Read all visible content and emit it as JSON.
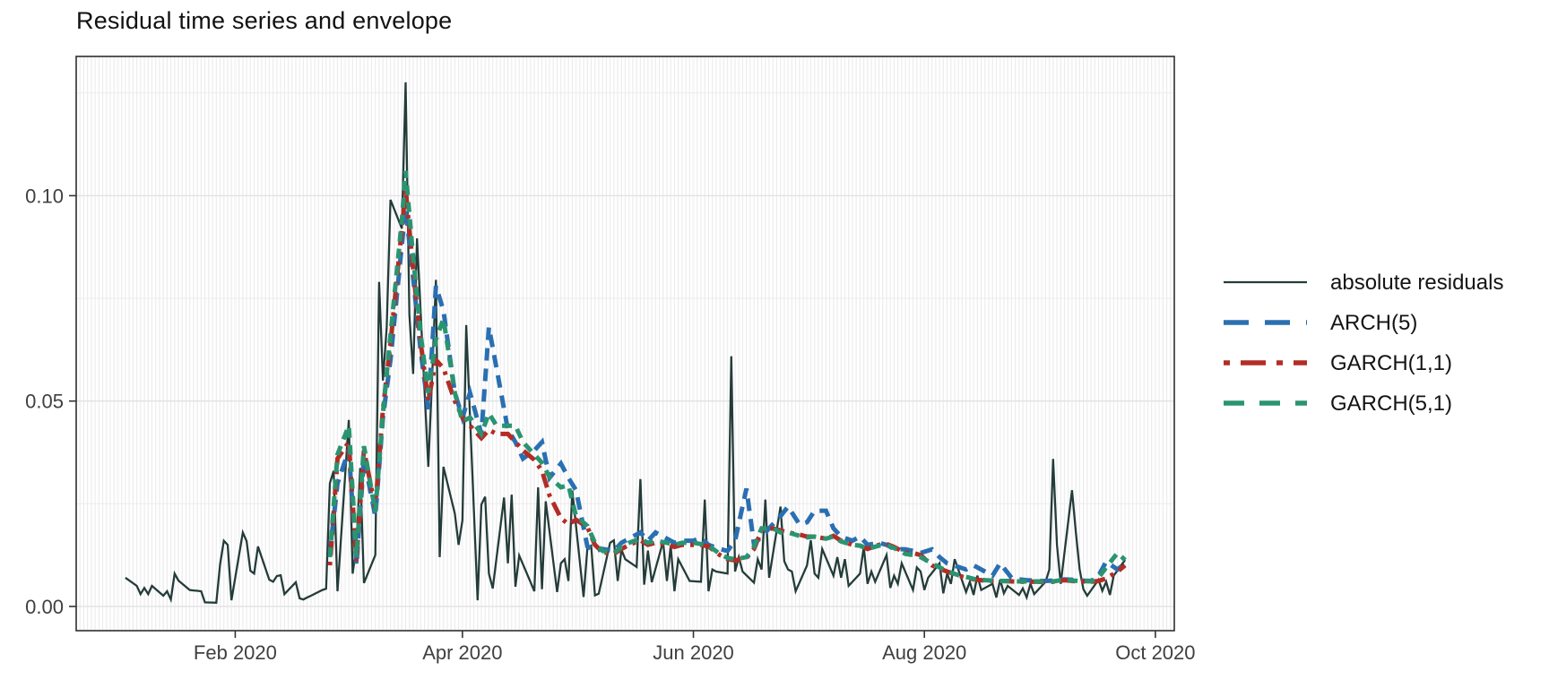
{
  "page": {
    "background": "#ffffff"
  },
  "chart_data": {
    "type": "line",
    "title": "Residual time series and envelope",
    "legend_position": "right",
    "x_axis": {
      "unit": "day of year 2020",
      "tick_labels": [
        "Feb 2020",
        "Apr 2020",
        "Jun 2020",
        "Aug 2020",
        "Oct 2020"
      ],
      "tick_days": [
        32,
        92,
        153,
        214,
        275
      ],
      "month_start_days": [
        1,
        32,
        61,
        92,
        122,
        153,
        183,
        214,
        245,
        275
      ],
      "domain_days": [
        -10,
        280
      ]
    },
    "y_axis": {
      "tick_labels": [
        "0.00",
        "0.05",
        "0.10"
      ],
      "tick_values": [
        0.0,
        0.05,
        0.1
      ],
      "minor_values": [
        0.025,
        0.075,
        0.125
      ],
      "domain": [
        -0.0059,
        0.1339
      ]
    },
    "grid": {
      "panel_background": "#ffffff",
      "panel_border": "#2f2f2f",
      "major_h": "#e2e2e2",
      "minor_h": "#ececec",
      "day_stripe": "#ececec",
      "month_band": "#f7f7f7"
    },
    "series": [
      {
        "name": "absolute residuals",
        "color": "#243c39",
        "linetype": "solid",
        "width": 2.3,
        "x": [
          3,
          6,
          7,
          8,
          9,
          10,
          13,
          14,
          15,
          16,
          17,
          20,
          21,
          22,
          23,
          24,
          27,
          28,
          29,
          30,
          31,
          34,
          35,
          36,
          37,
          38,
          41,
          42,
          43,
          44,
          45,
          48,
          49,
          50,
          51,
          52,
          55,
          56,
          57,
          58,
          59,
          62,
          63,
          64,
          65,
          66,
          69,
          70,
          71,
          72,
          73,
          76,
          77,
          78,
          79,
          80,
          83,
          84,
          85,
          86,
          87,
          90,
          91,
          92,
          93,
          96,
          97,
          98,
          99,
          100,
          103,
          104,
          105,
          106,
          107,
          110,
          111,
          112,
          113,
          114,
          117,
          118,
          119,
          120,
          121,
          124,
          125,
          126,
          127,
          128,
          131,
          132,
          133,
          134,
          135,
          138,
          139,
          140,
          141,
          142,
          145,
          146,
          147,
          148,
          149,
          152,
          155,
          156,
          157,
          158,
          159,
          162,
          163,
          164,
          165,
          166,
          169,
          170,
          171,
          172,
          173,
          176,
          177,
          178,
          179,
          180,
          183,
          184,
          185,
          186,
          187,
          190,
          191,
          192,
          193,
          194,
          197,
          198,
          199,
          200,
          201,
          204,
          205,
          206,
          207,
          208,
          211,
          212,
          213,
          214,
          215,
          218,
          219,
          220,
          221,
          222,
          225,
          226,
          227,
          228,
          229,
          232,
          233,
          234,
          235,
          236,
          239,
          240,
          241,
          242,
          243,
          246,
          247,
          248,
          249,
          250,
          253,
          254,
          255,
          256,
          257,
          260,
          261,
          262,
          263,
          264,
          267
        ],
        "y": [
          0.007,
          0.005,
          0.003,
          0.0045,
          0.003,
          0.005,
          0.0026,
          0.0037,
          0.0017,
          0.008,
          0.0063,
          0.004,
          0.0039,
          0.0038,
          0.0037,
          0.001,
          0.0009,
          0.0102,
          0.016,
          0.015,
          0.0015,
          0.018,
          0.0159,
          0.0087,
          0.008,
          0.0146,
          0.0065,
          0.006,
          0.0074,
          0.0076,
          0.003,
          0.0059,
          0.002,
          0.0017,
          0.0022,
          0.0026,
          0.004,
          0.0043,
          0.03,
          0.033,
          0.0037,
          0.0454,
          0.008,
          0.0147,
          0.0337,
          0.0057,
          0.0125,
          0.079,
          0.055,
          0.068,
          0.099,
          0.092,
          0.1276,
          0.071,
          0.0566,
          0.0896,
          0.034,
          0.056,
          0.0795,
          0.012,
          0.034,
          0.0226,
          0.015,
          0.021,
          0.0685,
          0.0015,
          0.0248,
          0.0267,
          0.008,
          0.0044,
          0.0265,
          0.0105,
          0.0272,
          0.0048,
          0.0124,
          0.0059,
          0.0037,
          0.029,
          0.0042,
          0.0256,
          0.0035,
          0.0105,
          0.0115,
          0.0062,
          0.0282,
          0.0023,
          0.0143,
          0.0148,
          0.0027,
          0.0031,
          0.0155,
          0.0161,
          0.0062,
          0.0138,
          0.0115,
          0.0096,
          0.031,
          0.0053,
          0.0136,
          0.0059,
          0.0158,
          0.0062,
          0.0148,
          0.0037,
          0.0115,
          0.0062,
          0.006,
          0.026,
          0.0037,
          0.009,
          0.0085,
          0.008,
          0.0609,
          0.0085,
          0.012,
          0.0085,
          0.0058,
          0.0115,
          0.009,
          0.026,
          0.007,
          0.0243,
          0.011,
          0.009,
          0.0085,
          0.0037,
          0.01,
          0.0161,
          0.008,
          0.007,
          0.014,
          0.0075,
          0.012,
          0.007,
          0.0115,
          0.005,
          0.008,
          0.0145,
          0.0055,
          0.0085,
          0.006,
          0.0125,
          0.0045,
          0.0075,
          0.0055,
          0.0105,
          0.004,
          0.0095,
          0.0085,
          0.004,
          0.007,
          0.0105,
          0.0032,
          0.008,
          0.0055,
          0.0115,
          0.0035,
          0.006,
          0.0028,
          0.0075,
          0.004,
          0.0055,
          0.0022,
          0.0065,
          0.0032,
          0.005,
          0.0028,
          0.0044,
          0.0022,
          0.0055,
          0.003,
          0.006,
          0.009,
          0.0359,
          0.015,
          0.0055,
          0.0283,
          0.018,
          0.009,
          0.0042,
          0.0026,
          0.0065,
          0.0038,
          0.006,
          0.0028,
          0.0075,
          0.0113
        ]
      },
      {
        "name": "ARCH(5)",
        "color": "#2a6fb1",
        "linetype": "longdash",
        "width": 5,
        "x": [
          57,
          59,
          62,
          64,
          66,
          69,
          71,
          73,
          76,
          77,
          79,
          81,
          83,
          85,
          87,
          90,
          92,
          94,
          97,
          99,
          101,
          104,
          106,
          108,
          111,
          113,
          115,
          118,
          120,
          122,
          125,
          127,
          129,
          132,
          134,
          136,
          139,
          141,
          143,
          146,
          148,
          150,
          153,
          155,
          157,
          160,
          162,
          164,
          167,
          169,
          171,
          174,
          176,
          178,
          181,
          183,
          185,
          188,
          190,
          192,
          195,
          197,
          199,
          202,
          204,
          206,
          209,
          211,
          213,
          216,
          218,
          220,
          223,
          225,
          227,
          230,
          232,
          234,
          237,
          239,
          241,
          244,
          246,
          248,
          251,
          253,
          255,
          258,
          260,
          262,
          265,
          267
        ],
        "y": [
          0.013,
          0.03,
          0.038,
          0.01,
          0.036,
          0.022,
          0.046,
          0.06,
          0.088,
          0.097,
          0.08,
          0.062,
          0.048,
          0.078,
          0.072,
          0.052,
          0.046,
          0.052,
          0.042,
          0.068,
          0.058,
          0.043,
          0.04,
          0.036,
          0.038,
          0.04,
          0.0313,
          0.0348,
          0.0313,
          0.0283,
          0.0146,
          0.0135,
          0.014,
          0.0135,
          0.0155,
          0.0165,
          0.018,
          0.016,
          0.018,
          0.0165,
          0.0155,
          0.016,
          0.016,
          0.0167,
          0.015,
          0.014,
          0.0135,
          0.016,
          0.0287,
          0.0152,
          0.017,
          0.02,
          0.022,
          0.0243,
          0.02,
          0.0205,
          0.0233,
          0.0233,
          0.019,
          0.017,
          0.016,
          0.017,
          0.015,
          0.0155,
          0.015,
          0.014,
          0.0139,
          0.0135,
          0.013,
          0.0139,
          0.012,
          0.0105,
          0.0096,
          0.009,
          0.01,
          0.0085,
          0.0075,
          0.0105,
          0.007,
          0.0066,
          0.0064,
          0.0062,
          0.0062,
          0.0063,
          0.0066,
          0.0065,
          0.0063,
          0.0062,
          0.0075,
          0.0109,
          0.009,
          0.0105
        ]
      },
      {
        "name": "GARCH(1,1)",
        "color": "#b22d26",
        "linetype": "dotdash",
        "width": 5,
        "x": [
          57,
          59,
          62,
          64,
          66,
          69,
          71,
          73,
          76,
          77,
          79,
          81,
          83,
          85,
          87,
          90,
          92,
          94,
          97,
          99,
          101,
          104,
          106,
          108,
          111,
          113,
          115,
          118,
          120,
          122,
          125,
          127,
          129,
          132,
          134,
          136,
          139,
          141,
          143,
          146,
          148,
          150,
          153,
          155,
          157,
          160,
          162,
          164,
          167,
          169,
          171,
          174,
          176,
          178,
          181,
          183,
          185,
          188,
          190,
          192,
          195,
          197,
          199,
          202,
          204,
          206,
          209,
          211,
          213,
          216,
          218,
          220,
          223,
          225,
          227,
          230,
          232,
          234,
          237,
          239,
          241,
          244,
          246,
          248,
          251,
          253,
          255,
          258,
          260,
          262,
          265,
          267
        ],
        "y": [
          0.01,
          0.036,
          0.04,
          0.011,
          0.038,
          0.024,
          0.048,
          0.064,
          0.092,
          0.1015,
          0.082,
          0.064,
          0.05,
          0.06,
          0.058,
          0.05,
          0.046,
          0.044,
          0.041,
          0.043,
          0.042,
          0.042,
          0.04,
          0.038,
          0.0357,
          0.033,
          0.027,
          0.0215,
          0.02,
          0.0211,
          0.0193,
          0.015,
          0.0132,
          0.0128,
          0.014,
          0.015,
          0.0161,
          0.015,
          0.0155,
          0.015,
          0.0145,
          0.015,
          0.015,
          0.015,
          0.0146,
          0.0125,
          0.0115,
          0.0112,
          0.0118,
          0.014,
          0.0185,
          0.019,
          0.0185,
          0.018,
          0.0175,
          0.017,
          0.017,
          0.0165,
          0.0172,
          0.016,
          0.015,
          0.0148,
          0.014,
          0.015,
          0.0152,
          0.0145,
          0.013,
          0.013,
          0.0125,
          0.01,
          0.0092,
          0.0085,
          0.0075,
          0.007,
          0.0066,
          0.0063,
          0.0062,
          0.0062,
          0.0061,
          0.006,
          0.006,
          0.006,
          0.0059,
          0.006,
          0.0064,
          0.0062,
          0.0061,
          0.006,
          0.0062,
          0.0068,
          0.0085,
          0.01
        ]
      },
      {
        "name": "GARCH(5,1)",
        "color": "#2a9471",
        "linetype": "dash",
        "width": 5,
        "x": [
          57,
          59,
          62,
          64,
          66,
          69,
          71,
          73,
          76,
          77,
          79,
          81,
          83,
          85,
          87,
          90,
          92,
          94,
          97,
          99,
          101,
          104,
          106,
          108,
          111,
          113,
          115,
          118,
          120,
          122,
          125,
          127,
          129,
          132,
          134,
          136,
          139,
          141,
          143,
          146,
          148,
          150,
          153,
          155,
          157,
          160,
          162,
          164,
          167,
          169,
          171,
          174,
          176,
          178,
          181,
          183,
          185,
          188,
          190,
          192,
          195,
          197,
          199,
          202,
          204,
          206,
          209,
          211,
          213,
          216,
          218,
          220,
          223,
          225,
          227,
          230,
          232,
          234,
          237,
          239,
          241,
          244,
          246,
          248,
          251,
          253,
          255,
          258,
          260,
          262,
          265,
          267
        ],
        "y": [
          0.012,
          0.037,
          0.044,
          0.012,
          0.039,
          0.023,
          0.047,
          0.066,
          0.094,
          0.106,
          0.085,
          0.066,
          0.052,
          0.065,
          0.07,
          0.052,
          0.045,
          0.046,
          0.042,
          0.047,
          0.044,
          0.044,
          0.044,
          0.04,
          0.037,
          0.035,
          0.0315,
          0.029,
          0.0295,
          0.022,
          0.0196,
          0.0155,
          0.0135,
          0.013,
          0.0145,
          0.0155,
          0.0165,
          0.0155,
          0.016,
          0.0155,
          0.015,
          0.0155,
          0.0155,
          0.0152,
          0.0148,
          0.0128,
          0.0118,
          0.0115,
          0.012,
          0.0145,
          0.019,
          0.019,
          0.018,
          0.018,
          0.0172,
          0.0168,
          0.017,
          0.0165,
          0.017,
          0.0158,
          0.015,
          0.0148,
          0.014,
          0.0148,
          0.015,
          0.0142,
          0.0128,
          0.0125,
          0.012,
          0.0105,
          0.0095,
          0.0086,
          0.0076,
          0.0072,
          0.0067,
          0.0064,
          0.0063,
          0.0062,
          0.0062,
          0.0061,
          0.0061,
          0.0061,
          0.006,
          0.0061,
          0.0065,
          0.0063,
          0.0062,
          0.0061,
          0.007,
          0.0095,
          0.013,
          0.0113
        ]
      }
    ]
  }
}
